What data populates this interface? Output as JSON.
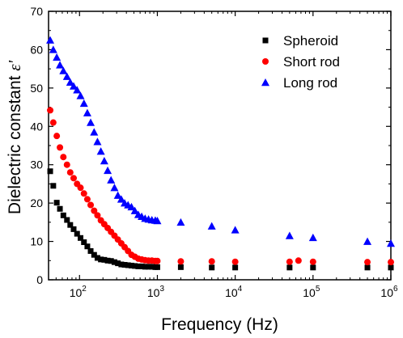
{
  "chart_data": {
    "type": "scatter",
    "title": "",
    "xlabel": "Frequency  (Hz)",
    "ylabel_main": "Dielectric constant ",
    "ylabel_symbol": "ε'",
    "xscale": "log",
    "xlim": [
      40,
      1000000
    ],
    "ylim": [
      0,
      70
    ],
    "xticks": [
      100,
      1000,
      10000,
      100000,
      1000000
    ],
    "xtick_labels": [
      {
        "base": "10",
        "exp": "2"
      },
      {
        "base": "10",
        "exp": "3"
      },
      {
        "base": "10",
        "exp": "4"
      },
      {
        "base": "10",
        "exp": "5"
      },
      {
        "base": "10",
        "exp": "6"
      }
    ],
    "yticks": [
      0,
      10,
      20,
      30,
      40,
      50,
      60,
      70
    ],
    "grid": false,
    "legend_position": "top-right",
    "series": [
      {
        "name": "Spheroid",
        "marker": "square",
        "color": "#000000",
        "points": [
          [
            42,
            28.3
          ],
          [
            46,
            24.5
          ],
          [
            51,
            20.1
          ],
          [
            56,
            18.5
          ],
          [
            62,
            16.8
          ],
          [
            69,
            15.6
          ],
          [
            76,
            14.3
          ],
          [
            84,
            13.2
          ],
          [
            93,
            12.0
          ],
          [
            103,
            10.9
          ],
          [
            114,
            9.8
          ],
          [
            126,
            8.7
          ],
          [
            139,
            7.5
          ],
          [
            154,
            6.5
          ],
          [
            170,
            5.7
          ],
          [
            188,
            5.3
          ],
          [
            208,
            5.2
          ],
          [
            230,
            5.0
          ],
          [
            254,
            4.9
          ],
          [
            281,
            4.6
          ],
          [
            311,
            4.3
          ],
          [
            344,
            4.0
          ],
          [
            380,
            3.9
          ],
          [
            420,
            3.8
          ],
          [
            465,
            3.7
          ],
          [
            514,
            3.6
          ],
          [
            569,
            3.5
          ],
          [
            629,
            3.5
          ],
          [
            696,
            3.4
          ],
          [
            770,
            3.4
          ],
          [
            851,
            3.4
          ],
          [
            941,
            3.3
          ],
          [
            1000,
            3.3
          ],
          [
            2000,
            3.3
          ],
          [
            5000,
            3.2
          ],
          [
            10000,
            3.2
          ],
          [
            50000,
            3.2
          ],
          [
            100000,
            3.2
          ],
          [
            500000,
            3.2
          ],
          [
            1000000,
            3.2
          ]
        ]
      },
      {
        "name": "Short rod",
        "marker": "circle",
        "color": "#ff0000",
        "points": [
          [
            42,
            44.2
          ],
          [
            46,
            41.0
          ],
          [
            51,
            37.5
          ],
          [
            56,
            34.5
          ],
          [
            62,
            32.0
          ],
          [
            69,
            30.0
          ],
          [
            76,
            28.0
          ],
          [
            84,
            26.5
          ],
          [
            93,
            25.0
          ],
          [
            103,
            24.0
          ],
          [
            114,
            22.5
          ],
          [
            126,
            21.0
          ],
          [
            139,
            19.5
          ],
          [
            154,
            18.0
          ],
          [
            170,
            16.8
          ],
          [
            188,
            15.5
          ],
          [
            208,
            14.5
          ],
          [
            230,
            13.5
          ],
          [
            254,
            12.5
          ],
          [
            281,
            11.5
          ],
          [
            311,
            10.5
          ],
          [
            344,
            9.5
          ],
          [
            380,
            8.5
          ],
          [
            420,
            7.5
          ],
          [
            465,
            6.5
          ],
          [
            514,
            6.0
          ],
          [
            569,
            5.5
          ],
          [
            629,
            5.3
          ],
          [
            696,
            5.1
          ],
          [
            770,
            5.0
          ],
          [
            851,
            5.0
          ],
          [
            941,
            4.9
          ],
          [
            1000,
            4.9
          ],
          [
            2000,
            4.8
          ],
          [
            5000,
            4.8
          ],
          [
            10000,
            4.7
          ],
          [
            50000,
            4.7
          ],
          [
            65000,
            5.0
          ],
          [
            100000,
            4.7
          ],
          [
            500000,
            4.6
          ],
          [
            1000000,
            4.6
          ]
        ]
      },
      {
        "name": "Long rod",
        "marker": "triangle",
        "color": "#0000ff",
        "points": [
          [
            42,
            62.5
          ],
          [
            46,
            60.0
          ],
          [
            51,
            58.0
          ],
          [
            56,
            56.0
          ],
          [
            62,
            54.5
          ],
          [
            69,
            53.0
          ],
          [
            76,
            51.5
          ],
          [
            84,
            50.5
          ],
          [
            93,
            49.5
          ],
          [
            103,
            48.0
          ],
          [
            114,
            46.0
          ],
          [
            126,
            43.5
          ],
          [
            139,
            41.0
          ],
          [
            154,
            38.5
          ],
          [
            170,
            36.0
          ],
          [
            188,
            33.5
          ],
          [
            208,
            31.0
          ],
          [
            230,
            28.5
          ],
          [
            254,
            26.0
          ],
          [
            281,
            24.0
          ],
          [
            311,
            22.0
          ],
          [
            344,
            21.0
          ],
          [
            380,
            20.0
          ],
          [
            420,
            19.5
          ],
          [
            465,
            19.0
          ],
          [
            514,
            18.0
          ],
          [
            569,
            17.0
          ],
          [
            629,
            16.5
          ],
          [
            696,
            16.0
          ],
          [
            770,
            15.8
          ],
          [
            851,
            15.6
          ],
          [
            941,
            15.5
          ],
          [
            1000,
            15.4
          ],
          [
            2000,
            15.0
          ],
          [
            5000,
            14.0
          ],
          [
            10000,
            13.0
          ],
          [
            50000,
            11.5
          ],
          [
            100000,
            11.0
          ],
          [
            500000,
            10.0
          ],
          [
            1000000,
            9.5
          ]
        ]
      }
    ]
  }
}
